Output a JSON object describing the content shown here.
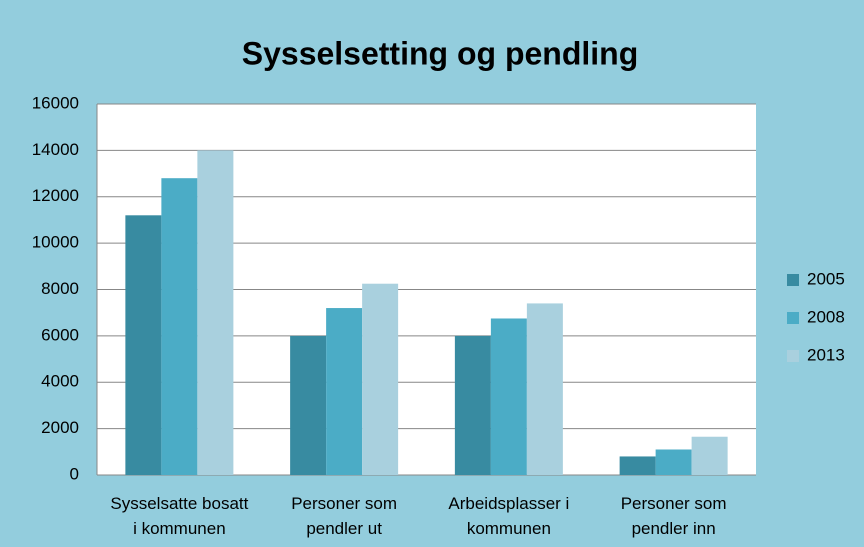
{
  "chart_data": {
    "type": "bar",
    "title": "Sysselsetting og pendling",
    "categories": [
      "Sysselsatte bosatt\ni kommunen",
      "Personer som\npendler ut",
      "Arbeidsplasser i\nkommunen",
      "Personer som\npendler inn"
    ],
    "series": [
      {
        "name": "2005",
        "color": "#388ba1",
        "values": [
          11200,
          6000,
          6000,
          800
        ]
      },
      {
        "name": "2008",
        "color": "#4bacc6",
        "values": [
          12800,
          7200,
          6750,
          1100
        ]
      },
      {
        "name": "2013",
        "color": "#a9d0de",
        "values": [
          14000,
          8250,
          7400,
          1650
        ]
      }
    ],
    "ylim": [
      0,
      16000
    ],
    "yticks": [
      0,
      2000,
      4000,
      6000,
      8000,
      10000,
      12000,
      14000,
      16000
    ],
    "grid": true,
    "legend": "right"
  }
}
